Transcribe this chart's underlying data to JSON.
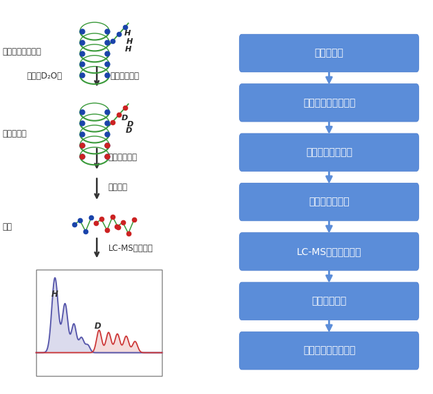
{
  "right_boxes": [
    "纯化蛋白质",
    "加入氘标缓冲液反应",
    "终止氢氚交换反应",
    "蛋白还原、酶切",
    "LC-MS液质串联检测",
    "质谱数据分析",
    "蛋白表位、功能分析"
  ],
  "box_color": "#5b8dd9",
  "box_edge_color": "#4a7bc4",
  "text_color": "#ffffff",
  "arrow_color": "#5b8dd9",
  "background_color": "#ffffff",
  "fig_width": 6.23,
  "fig_height": 5.67,
  "left_text_color": "#333333",
  "green_color": "#3a9a3a",
  "blue_dot_color": "#1a44aa",
  "red_dot_color": "#cc2222"
}
